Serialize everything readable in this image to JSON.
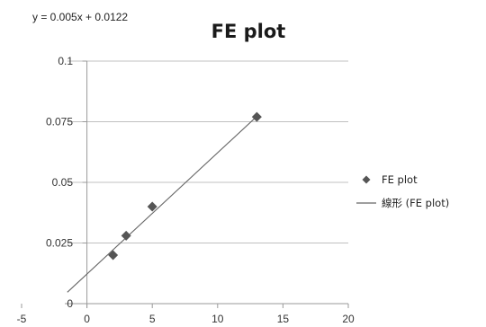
{
  "chart_data": {
    "type": "scatter",
    "title": "FE plot",
    "equation": "y = 0.005x + 0.0122",
    "xlabel": "",
    "ylabel": "",
    "xlim": [
      -5,
      20
    ],
    "ylim": [
      0,
      0.1
    ],
    "x_ticks": [
      "-5",
      "0",
      "5",
      "10",
      "15",
      "20"
    ],
    "y_ticks": [
      "0",
      "0.025",
      "0.05",
      "0.075",
      "0.1"
    ],
    "grid": "horizontal",
    "legend_position": "right",
    "series": [
      {
        "name": "FE plot",
        "marker": "diamond",
        "color": "#555555",
        "points": [
          {
            "x": 2,
            "y": 0.02
          },
          {
            "x": 3,
            "y": 0.028
          },
          {
            "x": 5,
            "y": 0.04
          },
          {
            "x": 13,
            "y": 0.077
          }
        ]
      }
    ],
    "trendline": {
      "name": "線形 (FE plot)",
      "slope": 0.005,
      "intercept": 0.0122,
      "x_range": [
        -1.5,
        13
      ],
      "color": "#666666"
    },
    "colors": {
      "gridline": "#c0c0c0",
      "axis": "#9a9a9a",
      "marker": "#555555",
      "trendline": "#666666"
    }
  }
}
